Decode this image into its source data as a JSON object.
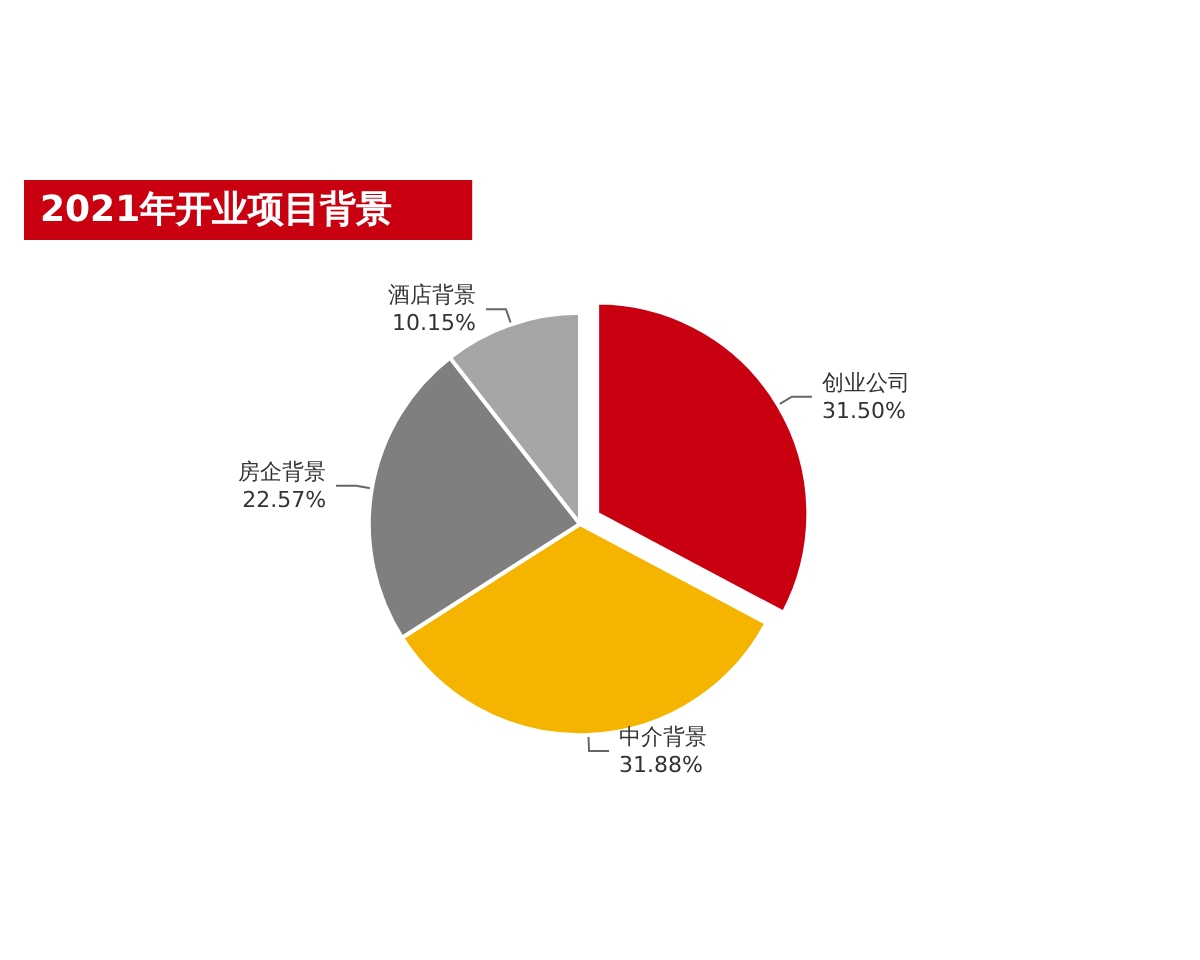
{
  "chart_data": {
    "type": "pie",
    "title": "2021年开业项目背景",
    "categories": [
      "创业公司",
      "中介背景",
      "房企背景",
      "酒店背景"
    ],
    "values": [
      31.5,
      31.88,
      22.57,
      10.15
    ],
    "value_labels": [
      "31.50%",
      "31.88%",
      "22.57%",
      "10.15%"
    ],
    "colors": [
      "#c8000f",
      "#f5b400",
      "#7f7f7f",
      "#a6a6a6"
    ],
    "legend": false
  }
}
